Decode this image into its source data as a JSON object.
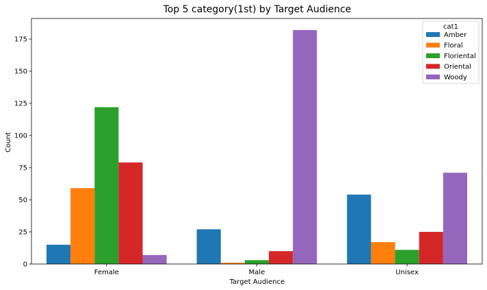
{
  "chart_data": {
    "type": "bar",
    "title": "Top 5 category(1st) by Target Audience",
    "xlabel": "Target Audience",
    "ylabel": "Count",
    "categories": [
      "Female",
      "Male",
      "Unisex"
    ],
    "ylim": [
      0,
      191
    ],
    "yticks": [
      0,
      25,
      50,
      75,
      100,
      125,
      150,
      175
    ],
    "grid": false,
    "legend": {
      "title": "cat1",
      "placement": "top-right"
    },
    "series": [
      {
        "name": "Amber",
        "color": "#1f77b4",
        "values": [
          15,
          27,
          54
        ]
      },
      {
        "name": "Floral",
        "color": "#ff7f0e",
        "values": [
          59,
          1,
          17
        ]
      },
      {
        "name": "Floriental",
        "color": "#2ca02c",
        "values": [
          122,
          3,
          11
        ]
      },
      {
        "name": "Oriental",
        "color": "#d62728",
        "values": [
          79,
          10,
          25
        ]
      },
      {
        "name": "Woody",
        "color": "#9467bd",
        "values": [
          7,
          182,
          71
        ]
      }
    ]
  }
}
